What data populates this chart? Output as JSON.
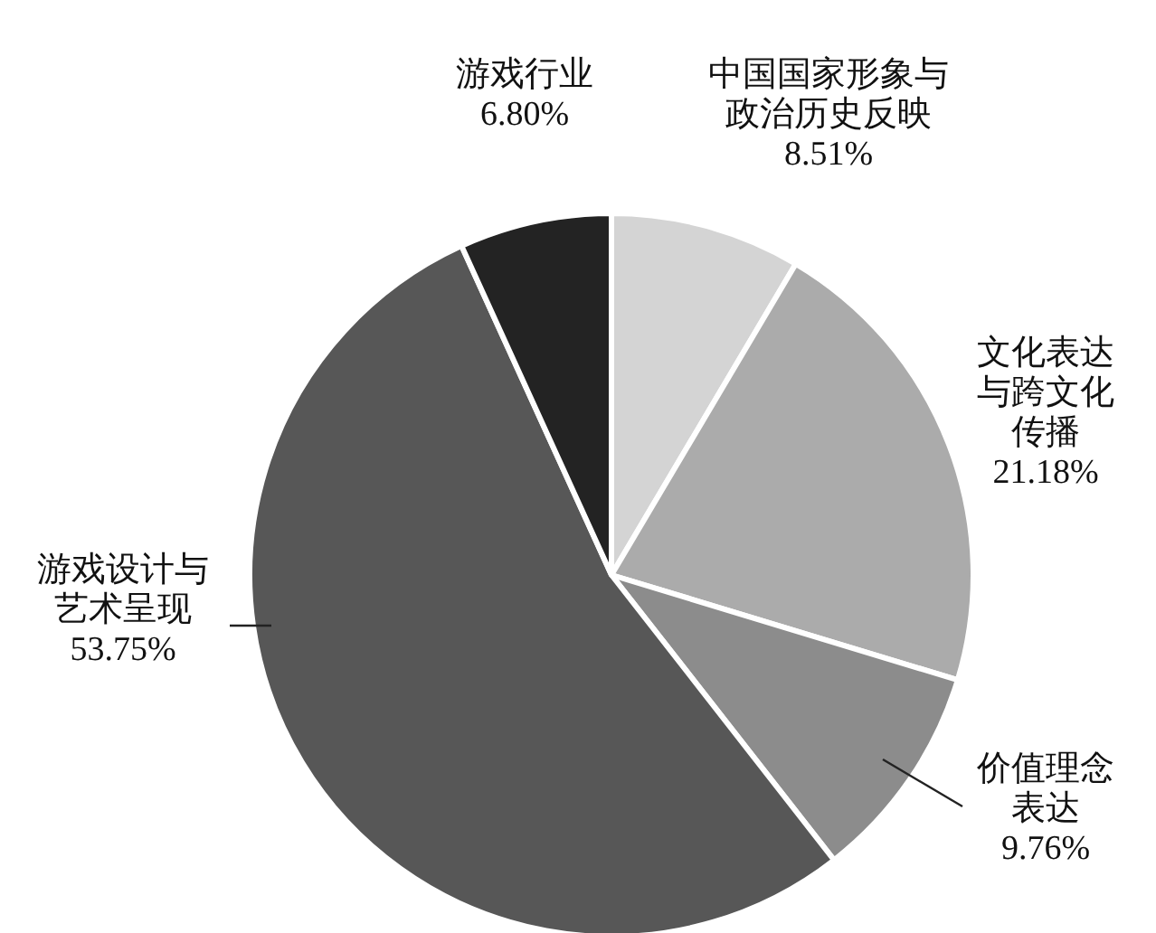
{
  "chart_data": {
    "type": "pie",
    "categories": [
      "中国国家形象与政治历史反映",
      "文化表达与跨文化传播",
      "价值理念表达",
      "游戏设计与艺术呈现",
      "游戏行业"
    ],
    "values": [
      8.51,
      21.18,
      9.76,
      53.75,
      6.8
    ],
    "value_labels": [
      "8.51%",
      "21.18%",
      "9.76%",
      "53.75%",
      "6.80%"
    ],
    "colors": [
      "#d4d4d4",
      "#ababab",
      "#8c8c8c",
      "#575757",
      "#232323"
    ]
  }
}
